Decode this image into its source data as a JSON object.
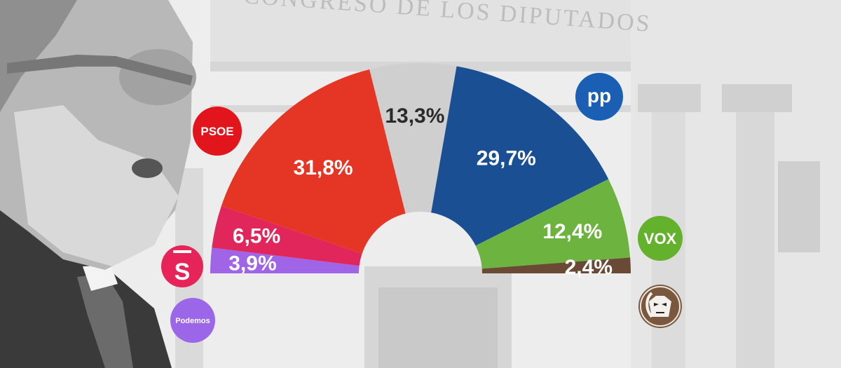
{
  "background": {
    "building_inscription": "CONGRESO DE LOS DIPUTADOS"
  },
  "chart_data": {
    "type": "pie",
    "variant": "hemicycle",
    "unit": "%",
    "series": [
      {
        "name": "Podemos",
        "value": 3.9,
        "label": "3,9%",
        "color": "#a064e6",
        "label_color": "#ffffff",
        "logo_color": "#9b66e8"
      },
      {
        "name": "Sumar",
        "value": 6.5,
        "label": "6,5%",
        "color": "#e0265a",
        "label_color": "#ffffff",
        "logo_color": "#e6245a"
      },
      {
        "name": "PSOE",
        "value": 31.8,
        "label": "31,8%",
        "color": "#e53525",
        "label_color": "#ffffff",
        "logo_color": "#e2151d"
      },
      {
        "name": "",
        "value": 13.3,
        "label": "13,3%",
        "color": "#cfcfcf",
        "label_color": "#2a2a2a"
      },
      {
        "name": "PP",
        "value": 29.7,
        "label": "29,7%",
        "color": "#1a4f94",
        "label_color": "#ffffff",
        "logo_color": "#1a5fb4"
      },
      {
        "name": "VOX",
        "value": 12.4,
        "label": "12,4%",
        "color": "#6db33f",
        "label_color": "#ffffff",
        "logo_color": "#63b12d"
      },
      {
        "name": "SALF",
        "value": 2.4,
        "label": "2,4%",
        "color": "#6a4a35",
        "label_color": "#ffffff",
        "logo_color": "#7a5840"
      }
    ]
  },
  "logos": {
    "psoe": "PSOE",
    "pp": "pp",
    "vox": "VOX",
    "sumar": "S",
    "podemos": "Podemos"
  }
}
